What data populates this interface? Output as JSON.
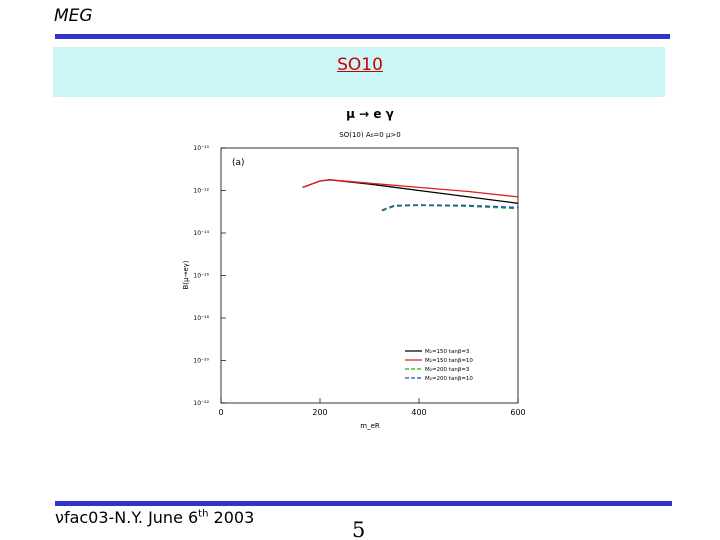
{
  "header": {
    "title": "MEG"
  },
  "slide": {
    "title": "SO10"
  },
  "footer": {
    "text": "νfac03-N.Y. June 6",
    "sup": "th",
    "year": "2003",
    "page": "5"
  },
  "chart_data": {
    "type": "line",
    "title": "μ → e γ",
    "subtitle": "SO(10)  A₀=0  μ>0",
    "annotation": "(a)",
    "xlabel": "m_eR",
    "ylabel": "B(μ→eγ)",
    "log_y": true,
    "xlim": [
      0,
      600
    ],
    "xticks": [
      0,
      200,
      400,
      600
    ],
    "ylim": [
      1e-22,
      1e-10
    ],
    "yticks": [
      {
        "value": 1e-22,
        "label": "10⁻²²"
      },
      {
        "value": 1e-20,
        "label": "10⁻²⁰"
      },
      {
        "value": 1e-18,
        "label": "10⁻¹⁸"
      },
      {
        "value": 1e-16,
        "label": "10⁻¹⁶"
      },
      {
        "value": 1e-14,
        "label": "10⁻¹⁴"
      },
      {
        "value": 1e-12,
        "label": "10⁻¹²"
      },
      {
        "value": 1e-10,
        "label": "10⁻¹⁰"
      }
    ],
    "series": [
      {
        "name": "M₂=150 tanβ=3",
        "color": "#000000",
        "dashed": false,
        "x": [
          165,
          200,
          220,
          300,
          400,
          500,
          600
        ],
        "values": [
          1.4e-12,
          2.8e-12,
          3.2e-12,
          2e-12,
          1e-12,
          5e-13,
          2.5e-13
        ]
      },
      {
        "name": "M₂=150 tanβ=10",
        "color": "#e02020",
        "dashed": false,
        "x": [
          165,
          200,
          220,
          300,
          400,
          500,
          600
        ],
        "values": [
          1.4e-12,
          2.8e-12,
          3.2e-12,
          2.2e-12,
          1.4e-12,
          9e-13,
          5e-13
        ]
      },
      {
        "name": "M₂=200 tanβ=3",
        "color": "#22aa22",
        "dashed": true,
        "x": [
          325,
          350,
          400,
          500,
          600
        ],
        "values": [
          1.1e-13,
          1.8e-13,
          2e-13,
          1.8e-13,
          1.4e-13
        ]
      },
      {
        "name": "M₂=200 tanβ=10",
        "color": "#2244cc",
        "dashed": true,
        "x": [
          325,
          350,
          400,
          500,
          600
        ],
        "values": [
          1.2e-13,
          2e-13,
          2.1e-13,
          2e-13,
          1.6e-13
        ]
      }
    ]
  }
}
